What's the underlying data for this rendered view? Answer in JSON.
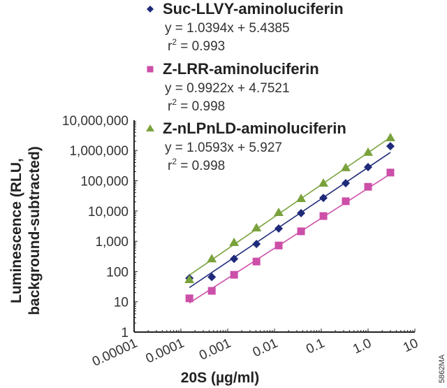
{
  "chart_data": {
    "type": "scatter",
    "xlabel": "20S (µg/ml)",
    "ylabel_line1": "Luminescence (RLU,",
    "ylabel_line2": "background-subtracted)",
    "x_scale": "log",
    "y_scale": "log",
    "xlim": [
      1e-05,
      10
    ],
    "ylim": [
      1,
      10000000
    ],
    "x_tick_labels": [
      "0.00001",
      "0.0001",
      "0.001",
      "0.01",
      "0.1",
      "1.0",
      "10"
    ],
    "y_tick_labels": [
      "1",
      "10",
      "100",
      "1,000",
      "10,000",
      "100,000",
      "1,000,000",
      "10,000,000"
    ],
    "grid": false,
    "legend_placement": "top",
    "figure_code": "5862MA",
    "x": [
      0.000152,
      0.000457,
      0.00137,
      0.00412,
      0.0123,
      0.037,
      0.111,
      0.333,
      1.0,
      3.0
    ],
    "series": [
      {
        "name": "Suc-LLVY-aminoluciferin",
        "marker": "diamond",
        "color": "#1f2a7a",
        "equation": "y = 1.0394x + 5.4385",
        "r2_label": "r",
        "r2_value": " = 0.993",
        "slope": 1.0394,
        "intercept": 5.4385,
        "values": [
          60,
          66,
          263,
          813,
          2630,
          8500,
          27000,
          83000,
          282000,
          1380000
        ]
      },
      {
        "name": "Z-LRR-aminoluciferin",
        "marker": "square",
        "color": "#cc4fa8",
        "equation": "y = 0.9922x + 4.7521",
        "r2_label": "r",
        "r2_value": " = 0.998",
        "slope": 0.9922,
        "intercept": 4.7521,
        "values": [
          13,
          23,
          78,
          214,
          724,
          2130,
          6800,
          21000,
          63000,
          186000
        ]
      },
      {
        "name": "Z-nLPnLD-aminoluciferin",
        "marker": "triangle",
        "color": "#7aa23c",
        "equation": "y = 1.0593x + 5.927",
        "r2_label": "r",
        "r2_value": " = 0.998",
        "slope": 1.0593,
        "intercept": 5.927,
        "values": [
          54,
          263,
          912,
          2754,
          8900,
          25700,
          83000,
          269000,
          870000,
          2630000
        ]
      }
    ]
  }
}
